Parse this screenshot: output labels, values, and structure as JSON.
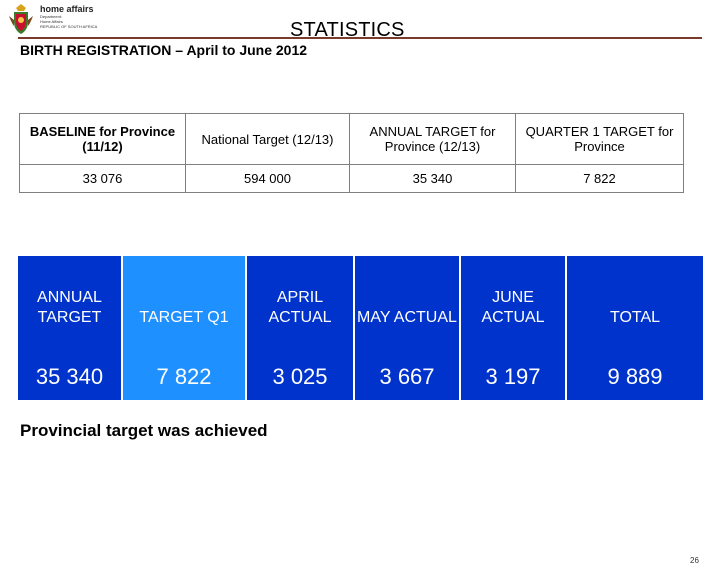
{
  "header": {
    "org_name": "home affairs",
    "org_subtext": [
      "Department:",
      "Home Affairs",
      "REPUBLIC OF SOUTH AFRICA"
    ],
    "title": "STATISTICS",
    "subtitle": "BIRTH REGISTRATION – April to June 2012",
    "rule_color": "#7a3a2e"
  },
  "info_table": {
    "headers": [
      "BASELINE for Province (11/12)",
      "National Target (12/13)",
      "ANNUAL TARGET for Province (12/13)",
      "QUARTER 1 TARGET for Province"
    ],
    "values": [
      "33 076",
      "594 000",
      "35 340",
      "7 822"
    ]
  },
  "stats_table": {
    "colors": {
      "main": "#0033cc",
      "highlight": "#1e90ff",
      "text": "#ffffff"
    },
    "columns": [
      {
        "label": "ANNUAL TARGET",
        "value": "35 340"
      },
      {
        "label": "TARGET Q1",
        "value": "7 822",
        "highlight": true
      },
      {
        "label": "APRIL ACTUAL",
        "value": "3 025"
      },
      {
        "label": "MAY ACTUAL",
        "value": "3 667"
      },
      {
        "label": "JUNE ACTUAL",
        "value": "3 197"
      },
      {
        "label": "TOTAL",
        "value": "9 889"
      }
    ]
  },
  "note": "Provincial target was achieved",
  "page_number": "26"
}
